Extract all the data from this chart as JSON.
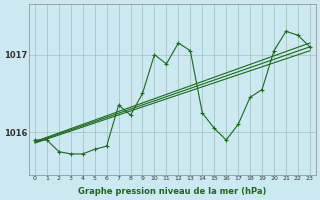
{
  "title": "Graphe pression niveau de la mer (hPa)",
  "background_color": "#cce8f0",
  "grid_color": "#9dbfbf",
  "line_color": "#1a6b1a",
  "x_ticks": [
    0,
    1,
    2,
    3,
    4,
    5,
    6,
    7,
    8,
    9,
    10,
    11,
    12,
    13,
    14,
    15,
    16,
    17,
    18,
    19,
    20,
    21,
    22,
    23
  ],
  "y_ticks": [
    1016,
    1017
  ],
  "ylim": [
    1015.45,
    1017.65
  ],
  "xlim": [
    -0.5,
    23.5
  ],
  "main_series": [
    1015.9,
    1015.9,
    1015.75,
    1015.72,
    1015.72,
    1015.78,
    1015.82,
    1016.35,
    1016.22,
    1016.5,
    1017.0,
    1016.88,
    1017.15,
    1017.05,
    1016.25,
    1016.05,
    1015.9,
    1016.1,
    1016.45,
    1016.55,
    1017.05,
    1017.3,
    1017.25,
    1017.1
  ],
  "trend_starts": [
    1015.88,
    1015.87,
    1015.86
  ],
  "trend_ends": [
    1017.15,
    1017.1,
    1017.05
  ],
  "marker": "+"
}
